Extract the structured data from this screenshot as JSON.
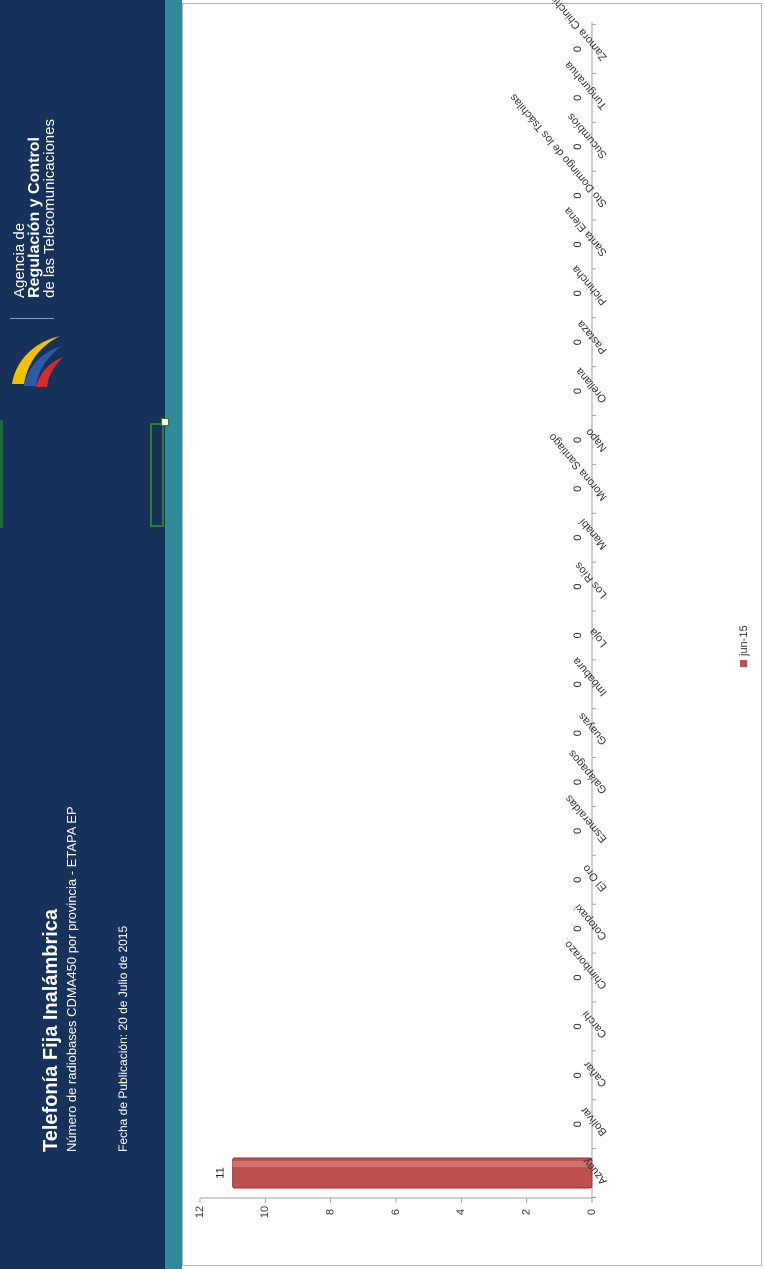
{
  "header": {
    "title": "Telefonía Fija Inalámbrica",
    "subtitle": "Número de radiobases CDMA450 por provincia - ETAPA EP",
    "publication_date": "Fecha de Publicación: 20 de Julio de 2015"
  },
  "org": {
    "line1": "Agencia de",
    "line2": "Regulación y Control",
    "line3": "de las Telecomunicaciones"
  },
  "colors": {
    "banner": "#17325a",
    "teal_band": "#2f8a9a",
    "bar": "#c0504d",
    "logo_yellow": "#f2c200",
    "logo_blue": "#2a5aa8",
    "logo_red": "#d62b2b"
  },
  "chart_data": {
    "type": "bar",
    "orientation": "vertical (page rotated 90°)",
    "categories": [
      "Azuay",
      "Bolívar",
      "Cañar",
      "Carchi",
      "Chimborazo",
      "Cotopaxi",
      "El Oro",
      "Esmeraldas",
      "Galápagos",
      "Guayas",
      "Imbabura",
      "Loja",
      "Los Ríos",
      "Manabí",
      "Morona Santiago",
      "Napo",
      "Orellana",
      "Pastaza",
      "Pichincha",
      "Santa Elena",
      "Sto Domingo de los Tsáchilas",
      "Sucumbíos",
      "Tungurahua",
      "Zamora Chinchipe"
    ],
    "series": [
      {
        "name": "jun-15",
        "values": [
          11,
          0,
          0,
          0,
          0,
          0,
          0,
          0,
          0,
          0,
          0,
          0,
          0,
          0,
          0,
          0,
          0,
          0,
          0,
          0,
          0,
          0,
          0,
          0
        ]
      }
    ],
    "data_labels": [
      "11",
      "0",
      "0",
      "0",
      "0",
      "0",
      "0",
      "0",
      "0",
      "0",
      "0",
      "0",
      "0",
      "0",
      "0",
      "0",
      "0",
      "0",
      "0",
      "0",
      "0",
      "0",
      "0",
      "0"
    ],
    "ylim": [
      0,
      12
    ],
    "y_ticks": [
      "0",
      "2",
      "4",
      "6",
      "8",
      "10",
      "12"
    ],
    "legend": "bottom",
    "grid": false
  }
}
